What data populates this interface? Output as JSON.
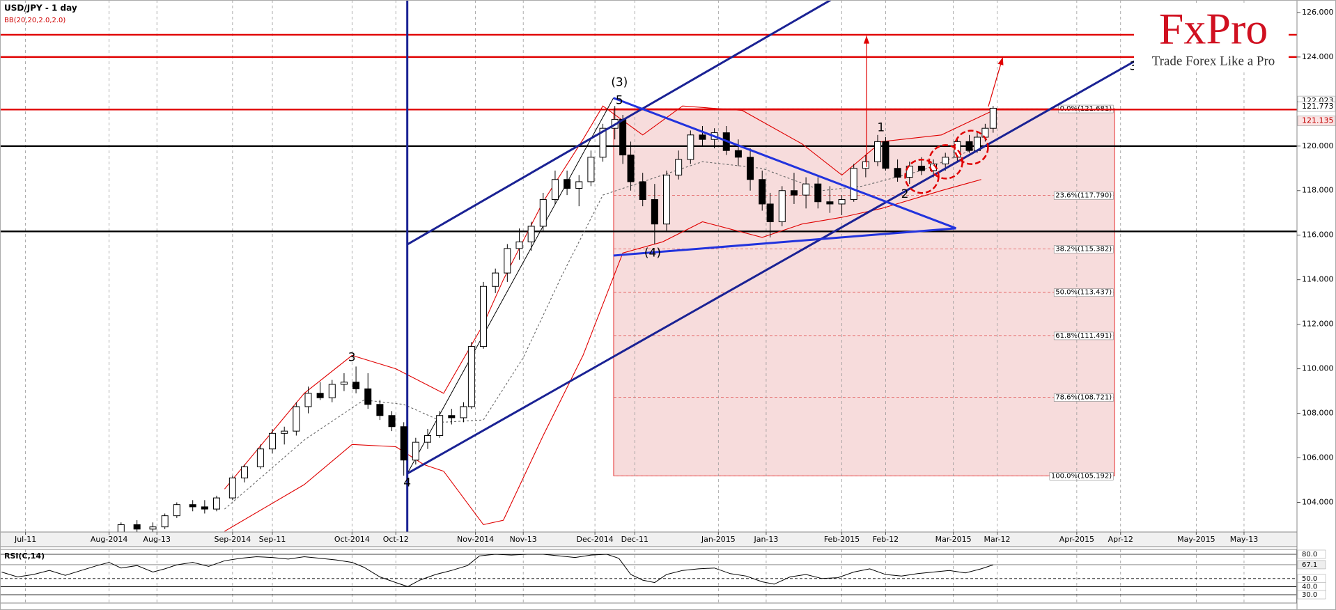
{
  "chart_data": {
    "type": "candlestick",
    "title": "USD/JPY - 1 day",
    "subtitle": "BB(20,20,2.0,2.0)",
    "xlim": [
      3.6,
      329.3
    ],
    "xticks": [
      {
        "value": 10,
        "label": "Jul-11"
      },
      {
        "value": 31,
        "label": "Aug-2014"
      },
      {
        "value": 43,
        "label": "Aug-13"
      },
      {
        "value": 62,
        "label": "Sep-2014"
      },
      {
        "value": 72,
        "label": "Sep-11"
      },
      {
        "value": 92,
        "label": "Oct-2014"
      },
      {
        "value": 103,
        "label": "Oct-12"
      },
      {
        "value": 123,
        "label": "Nov-2014"
      },
      {
        "value": 135,
        "label": "Nov-13"
      },
      {
        "value": 153,
        "label": "Dec-2014"
      },
      {
        "value": 163,
        "label": "Dec-11"
      },
      {
        "value": 184,
        "label": "Jan-2015"
      },
      {
        "value": 196,
        "label": "Jan-13"
      },
      {
        "value": 215,
        "label": "Feb-2015"
      },
      {
        "value": 226,
        "label": "Feb-12"
      },
      {
        "value": 243,
        "label": "Mar-2015"
      },
      {
        "value": 254,
        "label": "Mar-12"
      },
      {
        "value": 274,
        "label": "Apr-2015"
      },
      {
        "value": 285,
        "label": "Apr-12"
      },
      {
        "value": 304,
        "label": "May-2015"
      },
      {
        "value": 316,
        "label": "May-13"
      }
    ],
    "ylim": [
      102.67,
      126.56
    ],
    "yticks": [
      {
        "value": 126,
        "label": "126.000"
      },
      {
        "value": 124,
        "label": "124.000"
      },
      {
        "value": 122,
        "label": "122.000"
      },
      {
        "value": 120,
        "label": "120.000"
      },
      {
        "value": 118,
        "label": "118.000"
      },
      {
        "value": 116,
        "label": "116.000"
      },
      {
        "value": 114,
        "label": "114.000"
      },
      {
        "value": 112,
        "label": "112.000"
      },
      {
        "value": 110,
        "label": "110.000"
      },
      {
        "value": 108,
        "label": "108.000"
      },
      {
        "value": 106,
        "label": "106.000"
      },
      {
        "value": 104,
        "label": "104.000"
      }
    ],
    "x": [
      34,
      38,
      42,
      45,
      48,
      52,
      55,
      58,
      62,
      65,
      69,
      72,
      75,
      78,
      81,
      84,
      87,
      90,
      93,
      96,
      99,
      102,
      105,
      108,
      111,
      114,
      117,
      120,
      122,
      125,
      128,
      131,
      134,
      137,
      140,
      143,
      146,
      149,
      152,
      155,
      158,
      160,
      162,
      165,
      168,
      171,
      174,
      177,
      180,
      183,
      186,
      189,
      192,
      195,
      197,
      200,
      203,
      206,
      209,
      212,
      215,
      218,
      221,
      224,
      226,
      229,
      232,
      235,
      238,
      241,
      244,
      247,
      249,
      251,
      253
    ],
    "ohlc": [
      [
        102.6,
        103.1,
        102.5,
        103.0
      ],
      [
        103.0,
        103.2,
        102.6,
        102.8
      ],
      [
        102.8,
        103.1,
        102.5,
        102.9
      ],
      [
        102.9,
        103.5,
        102.8,
        103.4
      ],
      [
        103.4,
        104.0,
        103.3,
        103.9
      ],
      [
        103.9,
        104.1,
        103.6,
        103.8
      ],
      [
        103.8,
        104.1,
        103.5,
        103.7
      ],
      [
        103.7,
        104.3,
        103.6,
        104.2
      ],
      [
        104.2,
        105.2,
        104.1,
        105.1
      ],
      [
        105.1,
        105.7,
        104.9,
        105.6
      ],
      [
        105.6,
        106.6,
        105.5,
        106.4
      ],
      [
        106.4,
        107.3,
        106.2,
        107.1
      ],
      [
        107.1,
        107.4,
        106.6,
        107.2
      ],
      [
        107.2,
        108.5,
        107.0,
        108.3
      ],
      [
        108.3,
        109.2,
        108.0,
        108.9
      ],
      [
        108.9,
        109.4,
        108.6,
        108.7
      ],
      [
        108.7,
        109.5,
        108.5,
        109.3
      ],
      [
        109.3,
        109.8,
        109.0,
        109.4
      ],
      [
        109.4,
        110.1,
        108.9,
        109.1
      ],
      [
        109.1,
        109.8,
        108.2,
        108.4
      ],
      [
        108.4,
        108.6,
        107.7,
        107.9
      ],
      [
        107.9,
        108.1,
        107.2,
        107.4
      ],
      [
        107.4,
        107.6,
        105.2,
        105.9
      ],
      [
        105.9,
        106.9,
        105.7,
        106.7
      ],
      [
        106.7,
        107.3,
        106.4,
        107.0
      ],
      [
        107.0,
        108.1,
        106.9,
        107.9
      ],
      [
        107.9,
        108.2,
        107.5,
        107.8
      ],
      [
        107.8,
        108.5,
        107.6,
        108.3
      ],
      [
        108.3,
        111.2,
        108.2,
        111.0
      ],
      [
        111.0,
        113.9,
        110.9,
        113.7
      ],
      [
        113.7,
        114.5,
        113.4,
        114.3
      ],
      [
        114.3,
        115.6,
        113.9,
        115.4
      ],
      [
        115.4,
        116.3,
        114.9,
        115.7
      ],
      [
        115.7,
        116.6,
        115.3,
        116.4
      ],
      [
        116.4,
        117.9,
        116.2,
        117.6
      ],
      [
        117.6,
        118.9,
        117.4,
        118.5
      ],
      [
        118.5,
        118.9,
        117.8,
        118.1
      ],
      [
        118.1,
        118.7,
        117.3,
        118.4
      ],
      [
        118.4,
        119.8,
        118.2,
        119.5
      ],
      [
        119.5,
        121.0,
        119.3,
        120.8
      ],
      [
        120.8,
        121.8,
        120.3,
        121.2
      ],
      [
        121.2,
        121.4,
        119.2,
        119.6
      ],
      [
        119.6,
        120.2,
        118.0,
        118.4
      ],
      [
        118.4,
        118.8,
        117.3,
        117.6
      ],
      [
        117.6,
        118.3,
        115.6,
        116.5
      ],
      [
        116.5,
        118.9,
        116.2,
        118.7
      ],
      [
        118.7,
        119.8,
        118.5,
        119.4
      ],
      [
        119.4,
        120.7,
        119.2,
        120.5
      ],
      [
        120.5,
        120.9,
        120.0,
        120.3
      ],
      [
        120.3,
        120.8,
        119.9,
        120.6
      ],
      [
        120.6,
        120.9,
        119.6,
        119.8
      ],
      [
        119.8,
        120.3,
        119.1,
        119.5
      ],
      [
        119.5,
        119.9,
        118.0,
        118.5
      ],
      [
        118.5,
        118.9,
        117.1,
        117.4
      ],
      [
        117.4,
        117.9,
        115.9,
        116.6
      ],
      [
        116.6,
        118.2,
        116.4,
        118.0
      ],
      [
        118.0,
        118.8,
        117.4,
        117.8
      ],
      [
        117.8,
        118.6,
        117.2,
        118.3
      ],
      [
        118.3,
        118.6,
        117.2,
        117.5
      ],
      [
        117.5,
        118.2,
        117.0,
        117.4
      ],
      [
        117.4,
        117.8,
        116.9,
        117.6
      ],
      [
        117.6,
        119.2,
        117.5,
        119.0
      ],
      [
        119.0,
        119.6,
        118.6,
        119.3
      ],
      [
        119.3,
        120.5,
        119.1,
        120.2
      ],
      [
        120.2,
        120.4,
        118.9,
        119.0
      ],
      [
        119.0,
        119.4,
        118.4,
        118.6
      ],
      [
        118.6,
        119.3,
        118.3,
        119.1
      ],
      [
        119.1,
        119.5,
        118.7,
        118.9
      ],
      [
        118.9,
        119.4,
        118.6,
        119.2
      ],
      [
        119.2,
        119.7,
        118.9,
        119.5
      ],
      [
        119.5,
        120.4,
        119.3,
        120.2
      ],
      [
        120.2,
        120.5,
        119.7,
        119.8
      ],
      [
        119.8,
        120.6,
        119.7,
        120.4
      ],
      [
        120.4,
        121.0,
        120.2,
        120.8
      ],
      [
        120.8,
        121.8,
        120.6,
        121.7
      ]
    ],
    "overlays": [
      {
        "color": "#e00000",
        "dash": false,
        "x": [
          60,
          80,
          92,
          103,
          115,
          125,
          130,
          140,
          150,
          155,
          165,
          175,
          190,
          205,
          215,
          225,
          240,
          253
        ],
        "values": [
          104.6,
          108.9,
          110.6,
          110.0,
          108.9,
          112.0,
          114.0,
          117.5,
          120.3,
          121.8,
          120.5,
          121.8,
          121.6,
          120.1,
          118.7,
          120.2,
          120.5,
          121.6
        ]
      },
      {
        "color": "#e00000",
        "dash": false,
        "x": [
          60,
          80,
          92,
          103,
          110,
          115,
          125,
          130,
          140,
          150,
          160,
          170,
          180,
          195,
          205,
          215,
          225,
          240,
          250
        ],
        "values": [
          102.7,
          104.8,
          106.6,
          106.5,
          105.7,
          105.4,
          103.0,
          103.2,
          107.0,
          110.6,
          115.2,
          115.7,
          116.6,
          115.9,
          116.5,
          116.8,
          117.2,
          118.0,
          118.5
        ]
      },
      {
        "color": "#666666",
        "dash": true,
        "x": [
          60,
          80,
          95,
          105,
          115,
          125,
          135,
          145,
          155,
          165,
          180,
          195,
          210,
          220,
          235,
          250
        ],
        "values": [
          103.7,
          106.8,
          108.6,
          108.4,
          107.6,
          107.7,
          110.5,
          114.3,
          117.8,
          118.4,
          119.3,
          119.0,
          118.0,
          118.2,
          118.9,
          120.0
        ]
      }
    ],
    "levels": [
      {
        "value": 125,
        "color": "#e00000"
      },
      {
        "value": 124,
        "color": "#e00000"
      },
      {
        "value": 121.64,
        "color": "#e00000"
      },
      {
        "value": 120,
        "color": "#000000"
      },
      {
        "value": 116.17,
        "color": "#000000"
      }
    ],
    "fib": {
      "x": [
        157.7,
        283.5
      ],
      "color": "#f7dcdc",
      "levels": [
        {
          "value": 121.681,
          "label": "0.0%(121.681)"
        },
        {
          "value": 117.79,
          "label": "23.6%(117.790)"
        },
        {
          "value": 115.382,
          "label": "38.2%(115.382)"
        },
        {
          "value": 113.437,
          "label": "50.0%(113.437)"
        },
        {
          "value": 111.491,
          "label": "61.8%(111.491)"
        },
        {
          "value": 108.721,
          "label": "78.6%(108.721)"
        },
        {
          "value": 105.192,
          "label": "100.0%(105.192)"
        }
      ]
    },
    "price_tags": [
      {
        "value": 122.023,
        "label": "122.023",
        "color": "#000000"
      },
      {
        "value": 121.773,
        "label": "121.773",
        "color": "#000000"
      },
      {
        "value": 121.135,
        "label": "121.135",
        "color": "#c00000"
      }
    ],
    "annotations": [
      "(3)",
      "5",
      "(4)",
      "3",
      "4",
      "1",
      "2",
      "3"
    ],
    "logo": {
      "name": "FxPro",
      "slogan": "Trade Forex Like a Pro",
      "color": "#d01020"
    },
    "rsi": {
      "title": "RSI(C,14)",
      "ylim": [
        19.7,
        86
      ],
      "yticks": [
        {
          "value": 80,
          "label": "80.0"
        },
        {
          "value": 50,
          "label": "50.0"
        },
        {
          "value": 40,
          "label": "40.0"
        },
        {
          "value": 30,
          "label": "30.0"
        }
      ],
      "last": {
        "value": 67.1,
        "label": "67.1"
      },
      "x": [
        4,
        8,
        12,
        16,
        20,
        24,
        28,
        31,
        34,
        38,
        42,
        45,
        48,
        52,
        56,
        60,
        64,
        68,
        72,
        76,
        80,
        84,
        88,
        92,
        95,
        99,
        103,
        106,
        109,
        113,
        117,
        121,
        124,
        128,
        132,
        136,
        140,
        144,
        148,
        152,
        156,
        159,
        162,
        165,
        168,
        171,
        175,
        179,
        183,
        187,
        191,
        195,
        198,
        202,
        206,
        210,
        214,
        218,
        222,
        226,
        230,
        234,
        238,
        242,
        246,
        250,
        253
      ],
      "values": [
        58,
        52,
        55,
        60,
        54,
        60,
        66,
        70,
        63,
        66,
        58,
        62,
        67,
        70,
        65,
        72,
        75,
        77,
        76,
        74,
        77,
        75,
        73,
        70,
        64,
        52,
        45,
        40,
        48,
        55,
        60,
        66,
        78,
        80,
        79,
        80,
        80,
        78,
        76,
        79,
        80,
        75,
        55,
        48,
        45,
        55,
        60,
        62,
        63,
        56,
        53,
        46,
        43,
        52,
        55,
        50,
        51,
        58,
        62,
        55,
        53,
        56,
        58,
        60,
        57,
        62,
        67
      ]
    }
  }
}
